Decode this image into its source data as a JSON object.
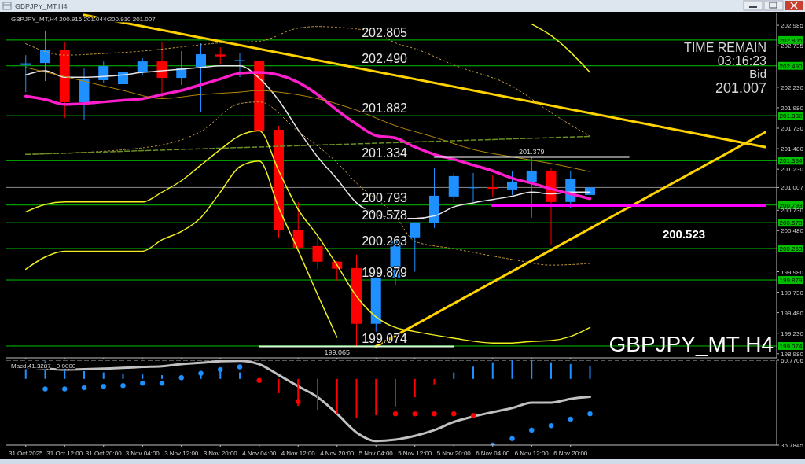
{
  "chart_data": [
    {
      "type": "candlestick",
      "title": "GBPJPY_MT,H4 200.916 201.044 200.910 201.007",
      "subtitle": "GBPJPY_MT,H4",
      "categories": [
        "31 Oct 2025",
        null,
        "31 Oct 12:00",
        null,
        "31 Oct 20:00",
        null,
        "3 Nov 04:00",
        null,
        "3 Nov 12:00",
        null,
        "3 Nov 20:00",
        null,
        "4 Nov 04:00",
        null,
        "4 Nov 12:00",
        null,
        "4 Nov 20:00",
        null,
        "5 Nov 04:00",
        null,
        "5 Nov 12:00",
        null,
        "5 Nov 20:00",
        null,
        "6 Nov 04:00",
        null,
        "6 Nov 12:00",
        null,
        "6 Nov 20:00",
        null,
        null,
        null,
        null,
        null,
        null,
        null,
        null,
        null,
        null
      ],
      "ohlc": [
        [
          202.5,
          202.62,
          202.17,
          202.52
        ],
        [
          202.525,
          202.92,
          202.305,
          202.688
        ],
        [
          202.688,
          202.784,
          201.855,
          202.046
        ],
        [
          202.046,
          202.458,
          201.836,
          202.334
        ],
        [
          202.315,
          202.544,
          202.286,
          202.487
        ],
        [
          202.267,
          202.64,
          202.209,
          202.42
        ],
        [
          202.41,
          202.583,
          202.381,
          202.544
        ],
        [
          202.544,
          202.784,
          202.094,
          202.343
        ],
        [
          202.343,
          202.669,
          202.257,
          202.468
        ],
        [
          202.477,
          202.765,
          201.922,
          202.631
        ],
        [
          202.628,
          202.717,
          202.506,
          202.605
        ],
        [
          202.55,
          202.65,
          202.353,
          202.56
        ],
        [
          202.554,
          202.56,
          201.7,
          201.701
        ],
        [
          201.711,
          201.759,
          200.389,
          200.485
        ],
        [
          200.485,
          200.83,
          200.26,
          200.274
        ],
        [
          200.293,
          200.418,
          200.006,
          200.102
        ],
        [
          200.102,
          200.11,
          199.872,
          200.016
        ],
        [
          200.025,
          200.188,
          199.065,
          199.345
        ],
        [
          199.345,
          199.91,
          199.25,
          199.91
        ],
        [
          199.91,
          200.41,
          199.824,
          200.399
        ],
        [
          200.399,
          200.581,
          199.98,
          200.581
        ],
        [
          200.571,
          201.251,
          200.514,
          200.906
        ],
        [
          200.897,
          201.184,
          200.83,
          201.146
        ],
        [
          201.003,
          201.184,
          200.83,
          201.008
        ],
        [
          201.01,
          201.165,
          200.897,
          200.99
        ],
        [
          200.983,
          201.203,
          200.916,
          201.079
        ],
        [
          201.069,
          201.379,
          200.638,
          201.213
        ],
        [
          201.213,
          201.251,
          200.303,
          200.83
        ],
        [
          200.83,
          201.213,
          200.753,
          201.108
        ],
        [
          200.916,
          201.044,
          200.91,
          201.007
        ],
        null,
        null,
        null,
        null,
        null,
        null,
        null,
        null,
        null
      ],
      "colors": [
        "#1e90ff",
        "#1e90ff",
        "#ff0000",
        "#1e90ff",
        "#1e90ff",
        "#1e90ff",
        "#1e90ff",
        "#ff0000",
        "#1e90ff",
        "#1e90ff",
        "#ff0000",
        "#1e90ff",
        "#ff0000",
        "#ff0000",
        "#ff0000",
        "#ff0000",
        "#ff0000",
        "#ff0000",
        "#1e90ff",
        "#1e90ff",
        "#1e90ff",
        "#1e90ff",
        "#1e90ff",
        "#1e90ff",
        "#ff0000",
        "#1e90ff",
        "#1e90ff",
        "#ff0000",
        "#1e90ff",
        "#1e90ff",
        null,
        null,
        null,
        null,
        null,
        null,
        null,
        null,
        null
      ],
      "series": [
        {
          "type": "line",
          "color": "#ffd200",
          "values": [
            null,
            null,
            null,
            203.11,
            null,
            null,
            null,
            null,
            null,
            null,
            null,
            null,
            null,
            null,
            null,
            null,
            null,
            null,
            null,
            null,
            null,
            null,
            null,
            null,
            null,
            null,
            null,
            null,
            null,
            null,
            null,
            null,
            null,
            null,
            null,
            null,
            null,
            null,
            201.5
          ]
        },
        {
          "type": "line",
          "color": "#ffd200",
          "values": [
            null,
            null,
            null,
            null,
            null,
            null,
            null,
            null,
            null,
            null,
            null,
            null,
            null,
            null,
            null,
            null,
            null,
            null,
            199.07,
            null,
            null,
            null,
            null,
            null,
            null,
            null,
            null,
            null,
            null,
            null,
            null,
            null,
            null,
            null,
            null,
            null,
            null,
            null,
            201.68
          ]
        },
        {
          "type": "line",
          "color": "#e6e6e6",
          "values": [
            202.38,
            202.43,
            202.35,
            202.35,
            202.36,
            202.38,
            202.41,
            202.43,
            202.45,
            202.47,
            202.49,
            202.49,
            202.34,
            202.07,
            201.71,
            201.38,
            201.11,
            200.82,
            200.68,
            200.63,
            200.63,
            200.66,
            200.77,
            200.82,
            200.86,
            200.9,
            200.95,
            200.93,
            200.95,
            200.95,
            null,
            null,
            null,
            null,
            null,
            null,
            null,
            null,
            null
          ]
        },
        {
          "type": "line",
          "color": "#ff1ecc",
          "values": [
            202.12,
            202.08,
            202.02,
            202.03,
            202.05,
            202.07,
            202.09,
            202.14,
            202.19,
            202.26,
            202.33,
            202.4,
            202.41,
            202.38,
            202.29,
            202.14,
            201.95,
            201.78,
            201.64,
            201.61,
            201.5,
            201.41,
            201.35,
            201.28,
            201.21,
            201.12,
            201.06,
            200.99,
            200.93,
            200.87,
            null,
            null,
            null,
            null,
            null,
            null,
            null,
            null,
            null
          ]
        },
        {
          "type": "line",
          "color": "#b8860b",
          "values": [
            202.47,
            null,
            202.36,
            null,
            null,
            202.19,
            null,
            202.09,
            null,
            202.14,
            null,
            202.17,
            202.19,
            202.17,
            null,
            202.09,
            null,
            201.95,
            null,
            201.76,
            null,
            201.62,
            null,
            201.47,
            null,
            201.38,
            null,
            201.3,
            null,
            201.2,
            null,
            null,
            null,
            null,
            null,
            null,
            null,
            null,
            null
          ]
        },
        {
          "type": "line",
          "color": "#c8a040",
          "line_style": "dotted",
          "values": [
            202.76,
            null,
            202.62,
            null,
            202.64,
            null,
            202.67,
            null,
            202.72,
            null,
            202.77,
            null,
            202.79,
            null,
            202.95,
            202.97,
            202.96,
            202.94,
            202.9,
            202.77,
            202.7,
            null,
            202.5,
            null,
            null,
            202.24,
            null,
            201.92,
            null,
            201.63,
            null,
            null,
            null,
            null,
            null,
            null,
            null,
            null,
            null
          ]
        },
        {
          "type": "line",
          "color": "#c8a040",
          "line_style": "dotted",
          "values": [
            201.41,
            null,
            null,
            null,
            null,
            null,
            201.49,
            null,
            null,
            201.69,
            null,
            202.03,
            202.05,
            null,
            201.69,
            null,
            201.31,
            201.06,
            null,
            200.66,
            200.35,
            null,
            200.26,
            null,
            null,
            200.13,
            null,
            200.06,
            null,
            200.08,
            null,
            null,
            null,
            null,
            null,
            null,
            null,
            null,
            null
          ]
        },
        {
          "type": "line",
          "color": "#6b8e23",
          "line_style": "dashed",
          "values": [
            201.41,
            null,
            null,
            null,
            null,
            null,
            null,
            null,
            null,
            null,
            null,
            null,
            null,
            null,
            null,
            null,
            null,
            null,
            null,
            null,
            null,
            null,
            null,
            null,
            null,
            null,
            null,
            null,
            null,
            201.63,
            null,
            null,
            null,
            null,
            null,
            null,
            null,
            null,
            null
          ]
        },
        {
          "type": "line",
          "color": "#f0f020",
          "values": [
            200.71,
            200.8,
            200.83,
            null,
            null,
            null,
            200.83,
            200.95,
            201.09,
            201.28,
            201.47,
            201.64,
            201.7,
            201.21,
            200.74,
            200.42,
            200.06,
            199.68,
            199.43,
            199.3,
            199.25,
            null,
            199.17,
            null,
            199.11,
            199.11,
            199.13,
            199.14,
            199.19,
            199.3,
            null,
            null,
            null,
            null,
            null,
            null,
            null,
            null,
            null
          ]
        },
        {
          "type": "line",
          "color": "#f0f020",
          "values": [
            200.01,
            200.16,
            200.23,
            null,
            null,
            null,
            200.23,
            200.37,
            200.47,
            200.64,
            200.95,
            201.26,
            201.33,
            200.76,
            200.24,
            199.7,
            199.18,
            null,
            null,
            null,
            null,
            null,
            null,
            null,
            null,
            null,
            null,
            null,
            null,
            null,
            null,
            null,
            null,
            null,
            null,
            null,
            null,
            null,
            null
          ]
        },
        {
          "type": "line",
          "color": "#f0f020",
          "values": [
            null,
            null,
            null,
            null,
            null,
            null,
            null,
            null,
            null,
            null,
            null,
            null,
            null,
            null,
            null,
            null,
            null,
            null,
            null,
            null,
            null,
            null,
            null,
            null,
            null,
            null,
            203.0,
            202.86,
            null,
            202.41,
            null,
            null,
            null,
            null,
            null,
            null,
            null,
            null,
            null
          ]
        },
        {
          "type": "line",
          "color": "#ff00ff",
          "values": [
            null,
            null,
            null,
            null,
            null,
            null,
            null,
            null,
            null,
            null,
            null,
            null,
            null,
            null,
            null,
            null,
            null,
            null,
            null,
            null,
            null,
            null,
            null,
            null,
            200.79,
            null,
            null,
            null,
            null,
            null,
            null,
            null,
            null,
            null,
            null,
            null,
            null,
            null,
            200.79
          ]
        },
        {
          "type": "line",
          "color": "#ffffff",
          "values": [
            null,
            null,
            null,
            null,
            null,
            null,
            null,
            null,
            null,
            null,
            null,
            null,
            null,
            null,
            null,
            null,
            null,
            null,
            null,
            null,
            null,
            201.38,
            null,
            null,
            null,
            null,
            null,
            null,
            null,
            null,
            null,
            201.38,
            null,
            null,
            null,
            null,
            null,
            null,
            null
          ]
        },
        {
          "type": "line",
          "color": "#d8ffd8",
          "values": [
            null,
            null,
            null,
            null,
            null,
            null,
            null,
            null,
            null,
            null,
            null,
            null,
            199.07,
            null,
            null,
            null,
            null,
            null,
            null,
            null,
            null,
            null,
            199.07,
            null,
            null,
            null,
            null,
            null,
            null,
            null,
            null,
            null,
            null,
            null,
            null,
            null,
            null,
            null,
            null
          ]
        }
      ],
      "ref_lines": [
        {
          "axis": "y",
          "value": 202.805,
          "label": "202.805",
          "color": "#00c000"
        },
        {
          "axis": "y",
          "value": 202.49,
          "label": "202.490",
          "color": "#00c000"
        },
        {
          "axis": "y",
          "value": 201.882,
          "label": "201.882",
          "color": "#00c000"
        },
        {
          "axis": "y",
          "value": 201.334,
          "label": "201.334",
          "color": "#00c000"
        },
        {
          "axis": "y",
          "value": 201.007,
          "color": "#8c8c8c"
        },
        {
          "axis": "y",
          "value": 200.793,
          "label": "200.793",
          "color": "#00c000"
        },
        {
          "axis": "y",
          "value": 200.578,
          "label": "200.578",
          "color": "#00c000"
        },
        {
          "axis": "y",
          "value": 200.263,
          "label": "200.263",
          "color": "#00c000"
        },
        {
          "axis": "y",
          "value": 199.879,
          "label": "199.879",
          "color": "#00c000"
        },
        {
          "axis": "y",
          "value": 199.074,
          "label": "199.074",
          "color": "#00c000"
        }
      ],
      "annotations": [
        {
          "text": "201.379",
          "x": "6 Nov 12:00",
          "y": 201.379
        },
        {
          "text": "199.065",
          "x": "4 Nov 20:00",
          "y": 199.065
        },
        "TIME REMAIN",
        "03:16:23",
        "Bid",
        "201.007",
        "200.523",
        "GBPJPY_MT H4"
      ],
      "ylim": [
        198.93,
        203.13
      ],
      "yticks": [
        202.985,
        202.735,
        {
          "value": 202.23,
          "label": "202.230"
        },
        {
          "value": 201.98,
          "label": "201.980"
        },
        {
          "value": 201.73,
          "label": "201.730"
        },
        {
          "value": 201.48,
          "label": "201.480"
        },
        {
          "value": 201.23,
          "label": "201.230"
        },
        201.007,
        {
          "value": 200.73,
          "label": "200.730"
        },
        {
          "value": 200.48,
          "label": "200.480"
        },
        {
          "value": 199.98,
          "label": "199.980"
        },
        {
          "value": 199.73,
          "label": "199.730"
        },
        {
          "value": 199.48,
          "label": "199.480"
        },
        {
          "value": 199.23,
          "label": "199.230"
        },
        {
          "value": 198.98,
          "label": "198.980"
        }
      ],
      "tick_labels": "y"
    },
    {
      "type": "bar",
      "title": "Macd 41.3287 · 0.0000",
      "categories": [
        "31 Oct 2025",
        null,
        "31 Oct 12:00",
        null,
        "31 Oct 20:00",
        null,
        "3 Nov 04:00",
        null,
        "3 Nov 12:00",
        null,
        "3 Nov 20:00",
        null,
        "4 Nov 04:00",
        null,
        "4 Nov 12:00",
        null,
        "4 Nov 20:00",
        null,
        "5 Nov 04:00",
        null,
        "5 Nov 12:00",
        null,
        "5 Nov 20:00",
        null,
        "6 Nov 04:00",
        null,
        "6 Nov 12:00",
        null,
        "6 Nov 20:00",
        null,
        null,
        null,
        null,
        null,
        null,
        null,
        null,
        null,
        null
      ],
      "values": [
        4.9,
        5.2,
        2.8,
        2.3,
        1.9,
        1.6,
        1.3,
        1.1,
        1.1,
        1.9,
        2.8,
        1.9,
        -0.3,
        -4.2,
        -7.9,
        -9.1,
        -10.2,
        -11.4,
        -10.7,
        -8.1,
        -5.4,
        -1.6,
        1.9,
        3.6,
        4.9,
        5.5,
        5.5,
        4.9,
        4.4,
        3.9,
        null,
        null,
        null,
        null,
        null,
        null,
        null,
        null,
        null
      ],
      "base": [
        55.26,
        55.26,
        55.26,
        55.26,
        55.26,
        55.26,
        55.26,
        55.26,
        55.26,
        55.26,
        55.26,
        55.26,
        55.26,
        55.26,
        55.26,
        55.26,
        55.26,
        55.26,
        55.26,
        55.26,
        55.26,
        55.26,
        55.26,
        55.26,
        55.26,
        55.26,
        55.26,
        55.26,
        55.26,
        55.26,
        null,
        null,
        null,
        null,
        null,
        null,
        null,
        null,
        null
      ],
      "colors": [
        "#1e90ff",
        "#1e90ff",
        "#1e90ff",
        "#1e90ff",
        "#1e90ff",
        "#1e90ff",
        "#1e90ff",
        "#1e90ff",
        "#1e90ff",
        "#1e90ff",
        "#1e90ff",
        "#1e90ff",
        "#ff0000",
        "#ff0000",
        "#ff0000",
        "#ff0000",
        "#ff0000",
        "#ff0000",
        "#ff0000",
        "#ff0000",
        "#ff0000",
        "#ff0000",
        "#1e90ff",
        "#1e90ff",
        "#1e90ff",
        "#1e90ff",
        "#1e90ff",
        "#1e90ff",
        "#1e90ff",
        "#1e90ff",
        null,
        null,
        null,
        null,
        null,
        null,
        null,
        null,
        null
      ],
      "series": [
        {
          "type": "line",
          "color": "#c0c0c0",
          "values": [
            58.8,
            58.3,
            58.0,
            58.1,
            58.3,
            58.5,
            58.8,
            59.0,
            59.6,
            60.0,
            60.5,
            60.6,
            59.6,
            56.4,
            53.1,
            49.9,
            45.0,
            39.5,
            37.0,
            37.4,
            38.5,
            40.2,
            42.6,
            44.2,
            45.5,
            46.7,
            48.3,
            48.3,
            49.4,
            50.0,
            null,
            null,
            null,
            null,
            null,
            null,
            null,
            null,
            null
          ]
        },
        {
          "type": "scatter",
          "color": "#1e90ff",
          "marker": "circle",
          "values": [
            null,
            52.3,
            52.3,
            52.7,
            53.1,
            53.3,
            54.0,
            54.0,
            55.6,
            56.9,
            58.0,
            58.8,
            null,
            null,
            null,
            null,
            null,
            null,
            null,
            null,
            null,
            null,
            null,
            null,
            35.8,
            37.7,
            40.2,
            41.5,
            43.4,
            45.0,
            null,
            null,
            null,
            null,
            null,
            null,
            null,
            null,
            null
          ]
        },
        {
          "type": "scatter",
          "color": "#ff0000",
          "marker": "circle",
          "values": [
            null,
            null,
            null,
            null,
            null,
            null,
            null,
            null,
            null,
            null,
            null,
            null,
            54.8,
            null,
            48.6,
            null,
            null,
            null,
            null,
            45.0,
            45.0,
            45.0,
            45.0,
            44.5,
            null,
            null,
            null,
            null,
            null,
            null,
            null,
            null,
            null,
            null,
            null,
            null,
            null,
            null,
            null
          ]
        }
      ],
      "ref_lines": [
        {
          "axis": "y",
          "value": 60.7706,
          "color": "#b0b0b0",
          "line_style": "dashed"
        }
      ],
      "ylim": [
        35.7845,
        60.7706
      ],
      "yticks": [
        35.7845,
        60.7706
      ]
    }
  ]
}
